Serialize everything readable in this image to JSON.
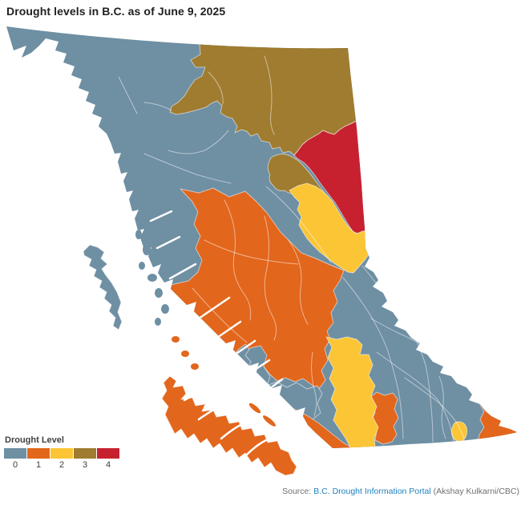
{
  "title": "Drought levels in B.C. as of June 9, 2025",
  "legend": {
    "title": "Drought Level",
    "items": [
      {
        "label": "0",
        "color": "#6f8fa3"
      },
      {
        "label": "1",
        "color": "#e2661c"
      },
      {
        "label": "2",
        "color": "#fbc535"
      },
      {
        "label": "3",
        "color": "#9f7c30"
      },
      {
        "label": "4",
        "color": "#c72130"
      }
    ]
  },
  "source": {
    "prefix": "Source: ",
    "link_text": "B.C. Drought Information Portal",
    "suffix": " (Akshay Kulkarni/CBC)",
    "link_color": "#1f82c0"
  },
  "map": {
    "description": "Choropleth map of British Columbia water basins coloured by drought level 0-4",
    "region_levels": {
      "interior-base": 0,
      "north-brown": 3,
      "peace-red": 4,
      "finlay-brown": 3,
      "northeast-yellow": 2,
      "central-orange": 1,
      "south-coast-blue": 0,
      "lower-mainland-orange": 1,
      "okanagan-yellow": 2,
      "boundary-orange": 1,
      "east-kootenay-orange": 1,
      "kootenay-yellow-small": 2,
      "haida-gwaii": 0,
      "coastal-islands": 0,
      "strait-islands": 1,
      "vancouver-island": 1
    }
  }
}
